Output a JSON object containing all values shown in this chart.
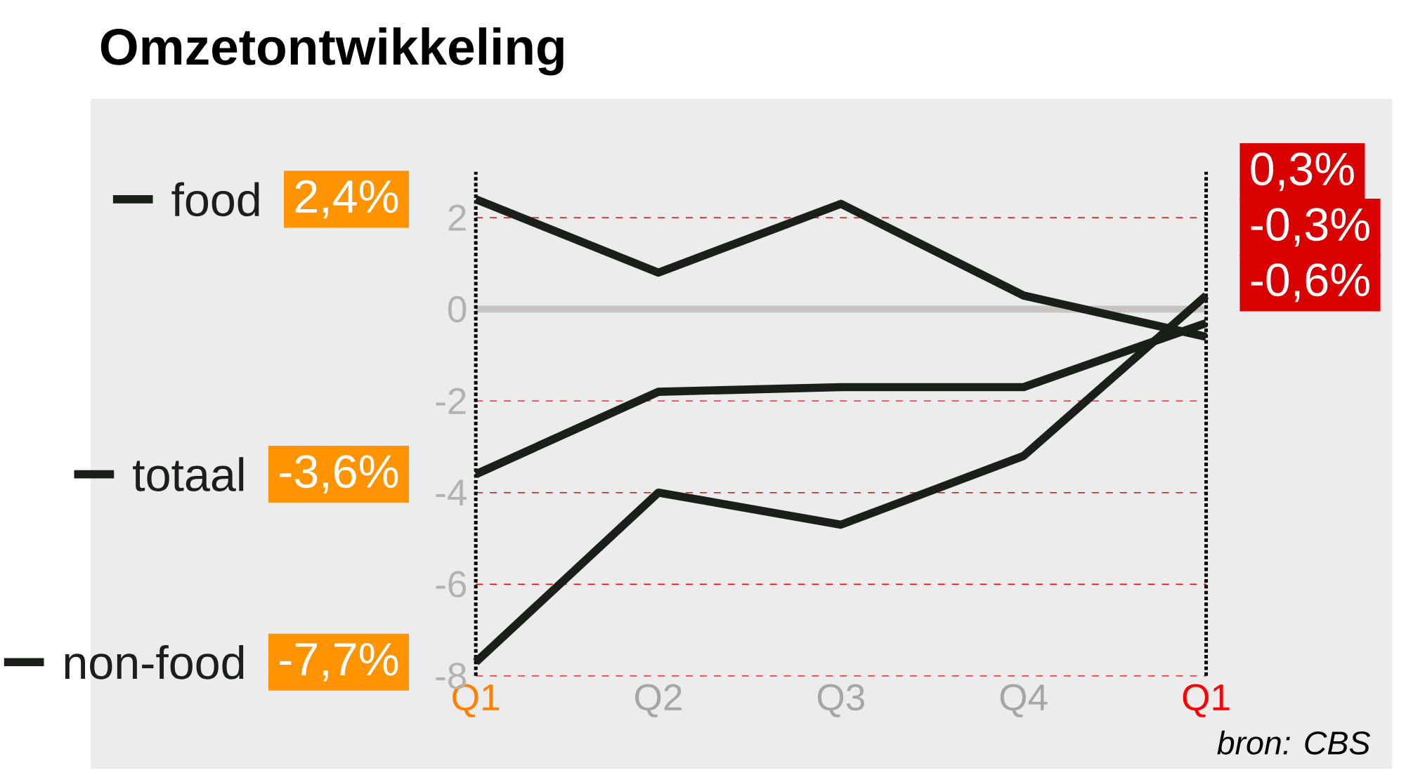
{
  "chart_data": {
    "type": "line",
    "title": "Omzetontwikkeling",
    "categories": [
      "Q1",
      "Q2",
      "Q3",
      "Q4",
      "Q1"
    ],
    "series": [
      {
        "name": "food",
        "color": "#1a1f1a",
        "values": [
          2.4,
          0.8,
          2.3,
          0.3,
          -0.6
        ],
        "value_labels": [
          "2,4%",
          null,
          null,
          null,
          "-0,6%"
        ]
      },
      {
        "name": "totaal",
        "color": "#1a1f1a",
        "values": [
          -3.6,
          -1.8,
          -1.7,
          -1.7,
          -0.3
        ],
        "value_labels": [
          "-3,6%",
          null,
          null,
          null,
          "-0,3%"
        ]
      },
      {
        "name": "non-food",
        "color": "#1a1f1a",
        "values": [
          -7.7,
          -4.0,
          -4.7,
          -3.2,
          0.3
        ],
        "value_labels": [
          "-7,7%",
          null,
          null,
          null,
          "0,3%"
        ]
      }
    ],
    "ylim": [
      -8,
      3
    ],
    "yticks": [
      -8,
      -6,
      -4,
      -2,
      0,
      2
    ],
    "grid": "y",
    "legend": "left",
    "marker": "none",
    "line_style": "solid",
    "ref_lines": [
      {
        "axis": "y",
        "value": 0,
        "color": "#c8c4c2"
      }
    ],
    "annotations": [
      "bron: CBS"
    ]
  }
}
